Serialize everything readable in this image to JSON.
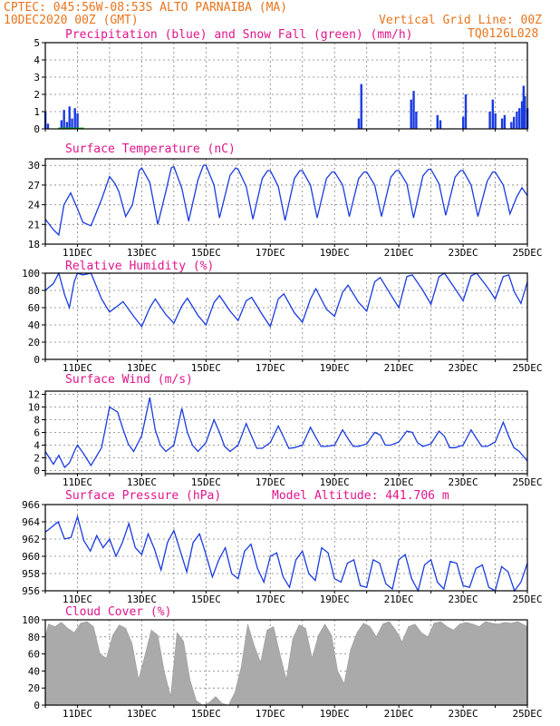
{
  "header": {
    "station": "CPTEC:  045:56W-08:53S  ALTO PARNAIBA (MA)",
    "init_time": "10DEC2020 00Z (GMT)",
    "grid_note": "Vertical Grid Line: 00Z",
    "run_code": "TQ0126L028"
  },
  "colors": {
    "accent": "#e8741c",
    "title": "#e0158c",
    "series": "#1a3be0",
    "snow": "#00b000",
    "cloud": "#aaaaaa"
  },
  "chart_data": [
    {
      "type": "bar",
      "title": "Precipitation (blue) and Snow Fall (green) (mm/h)",
      "ylim": [
        0,
        5
      ],
      "yticks": [
        "5",
        "4",
        "3",
        "2",
        "1",
        "0"
      ],
      "ytick_values": [
        5,
        4,
        3,
        2,
        1,
        0
      ],
      "x_ticks": [],
      "series": [
        {
          "color": "#1a3be0",
          "points": [
            [
              10.0,
              1.0
            ],
            [
              10.08,
              0.3
            ],
            [
              10.5,
              0.5
            ],
            [
              10.58,
              1.1
            ],
            [
              10.67,
              0.4
            ],
            [
              10.75,
              1.3
            ],
            [
              10.83,
              0.6
            ],
            [
              10.92,
              1.2
            ],
            [
              11.0,
              0.9
            ],
            [
              19.83,
              2.6
            ],
            [
              19.75,
              0.6
            ],
            [
              21.38,
              1.7
            ],
            [
              21.46,
              2.2
            ],
            [
              21.54,
              1.0
            ],
            [
              22.2,
              0.8
            ],
            [
              22.29,
              0.5
            ],
            [
              23.0,
              0.7
            ],
            [
              23.08,
              2.0
            ],
            [
              23.83,
              1.0
            ],
            [
              23.92,
              1.7
            ],
            [
              24.0,
              0.9
            ],
            [
              24.21,
              0.6
            ],
            [
              24.29,
              0.8
            ],
            [
              24.5,
              0.4
            ],
            [
              24.58,
              0.7
            ],
            [
              24.67,
              1.0
            ],
            [
              24.75,
              1.2
            ],
            [
              24.83,
              1.6
            ],
            [
              24.88,
              2.5
            ],
            [
              24.92,
              1.9
            ],
            [
              25.0,
              1.2
            ]
          ]
        },
        {
          "color": "#00b000",
          "points": []
        }
      ]
    },
    {
      "type": "line",
      "title": "Surface Temperature (nC)",
      "ylim": [
        18,
        31
      ],
      "yticks": [
        "30",
        "27",
        "24",
        "21",
        "18"
      ],
      "ytick_values": [
        30,
        27,
        24,
        21,
        18
      ],
      "x_ticks": [
        "11DEC",
        "13DEC",
        "15DEC",
        "17DEC",
        "19DEC",
        "21DEC",
        "23DEC",
        "25DEC"
      ],
      "x": [
        10.0,
        10.25,
        10.42,
        10.58,
        10.79,
        11.0,
        11.17,
        11.42,
        11.75,
        12.0,
        12.17,
        12.29,
        12.5,
        12.71,
        12.92,
        13.0,
        13.25,
        13.5,
        13.75,
        13.92,
        14.0,
        14.25,
        14.46,
        14.75,
        14.92,
        15.0,
        15.25,
        15.42,
        15.75,
        15.92,
        16.0,
        16.25,
        16.46,
        16.75,
        16.92,
        17.0,
        17.25,
        17.46,
        17.75,
        17.92,
        18.0,
        18.25,
        18.46,
        18.75,
        18.92,
        19.0,
        19.25,
        19.46,
        19.75,
        19.92,
        20.0,
        20.25,
        20.46,
        20.75,
        20.92,
        21.0,
        21.25,
        21.46,
        21.75,
        21.92,
        22.0,
        22.25,
        22.46,
        22.75,
        22.92,
        23.0,
        23.25,
        23.46,
        23.75,
        23.92,
        24.0,
        24.25,
        24.46,
        24.67,
        24.83,
        25.0
      ],
      "values": [
        21.8,
        20.2,
        19.4,
        24.0,
        25.8,
        23.4,
        21.3,
        20.8,
        24.8,
        28.3,
        27.2,
        26.0,
        22.2,
        24.0,
        29.2,
        29.6,
        27.4,
        21.0,
        26.0,
        29.6,
        29.8,
        26.5,
        21.5,
        27.8,
        30.0,
        30.0,
        27.0,
        22.0,
        28.5,
        29.6,
        29.4,
        26.8,
        21.8,
        28.0,
        29.2,
        29.2,
        26.8,
        21.6,
        28.0,
        29.2,
        29.2,
        27.0,
        22.0,
        28.0,
        29.0,
        29.0,
        27.0,
        22.2,
        28.0,
        29.0,
        29.0,
        27.0,
        22.2,
        28.2,
        29.2,
        29.2,
        27.2,
        22.0,
        28.4,
        29.4,
        29.4,
        27.2,
        22.4,
        28.2,
        29.2,
        29.2,
        27.0,
        22.2,
        27.6,
        29.0,
        29.0,
        27.0,
        22.6,
        25.2,
        26.6,
        25.4
      ]
    },
    {
      "type": "line",
      "title": "Relative Humidity (%)",
      "ylim": [
        0,
        100
      ],
      "yticks": [
        "100",
        "80",
        "60",
        "40",
        "20",
        "0"
      ],
      "ytick_values": [
        100,
        80,
        60,
        40,
        20,
        0
      ],
      "x_ticks": [
        "11DEC",
        "13DEC",
        "15DEC",
        "17DEC",
        "19DEC",
        "21DEC",
        "23DEC",
        "25DEC"
      ],
      "x": [
        10.0,
        10.25,
        10.42,
        10.6,
        10.75,
        10.9,
        11.0,
        11.17,
        11.42,
        11.75,
        12.0,
        12.25,
        12.42,
        12.75,
        13.0,
        13.25,
        13.42,
        13.75,
        14.0,
        14.25,
        14.42,
        14.75,
        15.0,
        15.25,
        15.42,
        15.75,
        16.0,
        16.25,
        16.42,
        16.75,
        17.0,
        17.25,
        17.42,
        17.75,
        18.0,
        18.25,
        18.42,
        18.75,
        19.0,
        19.25,
        19.42,
        19.75,
        20.0,
        20.25,
        20.42,
        20.75,
        21.0,
        21.25,
        21.42,
        21.75,
        22.0,
        22.25,
        22.42,
        22.75,
        23.0,
        23.25,
        23.42,
        23.75,
        24.0,
        24.25,
        24.42,
        24.6,
        24.8,
        25.0
      ],
      "values": [
        80,
        88,
        100,
        75,
        60,
        90,
        100,
        98,
        100,
        70,
        55,
        62,
        67,
        50,
        38,
        60,
        70,
        52,
        42,
        62,
        71,
        51,
        40,
        66,
        74,
        56,
        45,
        68,
        72,
        52,
        38,
        70,
        76,
        54,
        43,
        70,
        82,
        58,
        50,
        78,
        86,
        66,
        56,
        90,
        95,
        75,
        60,
        96,
        98,
        80,
        64,
        96,
        100,
        82,
        68,
        97,
        100,
        84,
        70,
        96,
        98,
        78,
        65,
        90
      ]
    },
    {
      "type": "line",
      "title": "Surface Wind (m/s)",
      "ylim": [
        -0.5,
        12.5
      ],
      "yticks": [
        "12",
        "10",
        "8",
        "6",
        "4",
        "2",
        "0"
      ],
      "ytick_values": [
        12,
        10,
        8,
        6,
        4,
        2,
        0
      ],
      "x_ticks": [
        "11DEC",
        "13DEC",
        "15DEC",
        "17DEC",
        "19DEC",
        "21DEC",
        "23DEC",
        "25DEC"
      ],
      "x": [
        10.0,
        10.25,
        10.42,
        10.6,
        10.75,
        10.92,
        11.0,
        11.17,
        11.42,
        11.75,
        12.0,
        12.25,
        12.42,
        12.58,
        12.75,
        13.0,
        13.25,
        13.42,
        13.58,
        13.75,
        14.0,
        14.25,
        14.42,
        14.58,
        14.75,
        15.0,
        15.25,
        15.42,
        15.58,
        15.75,
        16.0,
        16.25,
        16.42,
        16.58,
        16.75,
        17.0,
        17.25,
        17.42,
        17.58,
        17.75,
        18.0,
        18.25,
        18.42,
        18.58,
        18.75,
        19.0,
        19.25,
        19.42,
        19.58,
        19.75,
        20.0,
        20.25,
        20.42,
        20.58,
        20.75,
        21.0,
        21.25,
        21.42,
        21.58,
        21.75,
        22.0,
        22.25,
        22.42,
        22.58,
        22.75,
        23.0,
        23.25,
        23.42,
        23.58,
        23.75,
        24.0,
        24.25,
        24.42,
        24.58,
        24.75,
        25.0
      ],
      "values": [
        3.0,
        1.0,
        2.4,
        0.5,
        1.2,
        3.2,
        4.0,
        2.8,
        0.8,
        3.6,
        10.0,
        9.2,
        6.5,
        4.2,
        3.0,
        5.5,
        11.5,
        6.4,
        4.0,
        3.0,
        4.0,
        9.8,
        6.0,
        4.0,
        3.0,
        4.4,
        8.0,
        6.0,
        3.8,
        3.0,
        4.0,
        7.4,
        5.4,
        3.5,
        3.5,
        4.4,
        7.0,
        5.2,
        3.5,
        3.6,
        4.0,
        6.8,
        5.2,
        3.8,
        3.8,
        4.0,
        6.4,
        5.0,
        3.8,
        3.8,
        4.2,
        6.0,
        5.6,
        4.0,
        4.0,
        4.5,
        6.2,
        6.0,
        4.4,
        3.8,
        4.2,
        6.2,
        5.4,
        3.6,
        3.6,
        4.0,
        6.4,
        5.0,
        3.8,
        3.8,
        4.5,
        7.6,
        5.4,
        3.6,
        3.0,
        1.5
      ]
    },
    {
      "type": "line",
      "title": "Surface Pressure (hPa)",
      "subtitle": "Model Altitude: 441.706 m",
      "ylim": [
        956,
        966
      ],
      "yticks": [
        "966",
        "964",
        "962",
        "960",
        "958",
        "956"
      ],
      "ytick_values": [
        966,
        964,
        962,
        960,
        958,
        956
      ],
      "x_ticks": [
        "11DEC",
        "13DEC",
        "15DEC",
        "17DEC",
        "19DEC",
        "21DEC",
        "23DEC",
        "25DEC"
      ],
      "x": [
        10.0,
        10.2,
        10.4,
        10.6,
        10.8,
        11.0,
        11.2,
        11.4,
        11.6,
        11.8,
        12.0,
        12.2,
        12.4,
        12.6,
        12.8,
        13.0,
        13.2,
        13.4,
        13.6,
        13.8,
        14.0,
        14.2,
        14.4,
        14.6,
        14.8,
        15.0,
        15.2,
        15.4,
        15.6,
        15.8,
        16.0,
        16.2,
        16.4,
        16.6,
        16.8,
        17.0,
        17.2,
        17.4,
        17.6,
        17.8,
        18.0,
        18.2,
        18.4,
        18.6,
        18.8,
        19.0,
        19.2,
        19.4,
        19.6,
        19.8,
        20.0,
        20.2,
        20.4,
        20.6,
        20.8,
        21.0,
        21.2,
        21.4,
        21.6,
        21.8,
        22.0,
        22.2,
        22.4,
        22.6,
        22.8,
        23.0,
        23.2,
        23.4,
        23.6,
        23.8,
        24.0,
        24.2,
        24.4,
        24.6,
        24.8,
        25.0
      ],
      "values": [
        962.8,
        963.4,
        964.0,
        962.0,
        962.2,
        964.6,
        961.8,
        960.6,
        962.4,
        961.0,
        962.0,
        960.0,
        961.6,
        963.8,
        961.0,
        960.2,
        962.6,
        960.8,
        958.4,
        961.6,
        963.0,
        960.6,
        958.2,
        961.6,
        962.6,
        960.2,
        957.6,
        959.6,
        961.0,
        958.0,
        957.4,
        960.6,
        961.4,
        958.6,
        957.0,
        960.0,
        960.4,
        957.6,
        956.4,
        959.6,
        960.6,
        958.0,
        957.2,
        961.0,
        960.4,
        957.4,
        957.0,
        959.2,
        959.6,
        956.6,
        956.4,
        959.6,
        959.2,
        956.8,
        956.2,
        959.6,
        960.2,
        957.4,
        956.0,
        959.0,
        959.6,
        957.0,
        956.2,
        959.4,
        959.2,
        956.6,
        956.4,
        958.6,
        959.0,
        956.4,
        956.0,
        958.8,
        958.2,
        956.0,
        957.0,
        959.2
      ]
    },
    {
      "type": "area",
      "title": "Cloud Cover (%)",
      "ylim": [
        0,
        100
      ],
      "yticks": [
        "100",
        "80",
        "60",
        "40",
        "20",
        "0"
      ],
      "ytick_values": [
        100,
        80,
        60,
        40,
        20,
        0
      ],
      "x_ticks": [
        "11DEC",
        "13DEC",
        "15DEC",
        "17DEC",
        "19DEC",
        "21DEC",
        "23DEC",
        "25DEC"
      ],
      "x": [
        10.0,
        10.1,
        10.3,
        10.5,
        10.7,
        10.9,
        11.1,
        11.3,
        11.5,
        11.7,
        11.9,
        12.1,
        12.3,
        12.5,
        12.7,
        12.9,
        13.1,
        13.3,
        13.5,
        13.7,
        13.9,
        14.1,
        14.3,
        14.5,
        14.7,
        14.9,
        15.1,
        15.3,
        15.5,
        15.7,
        15.9,
        16.1,
        16.3,
        16.5,
        16.7,
        16.9,
        17.1,
        17.3,
        17.5,
        17.7,
        17.9,
        18.1,
        18.3,
        18.5,
        18.7,
        18.9,
        19.1,
        19.3,
        19.5,
        19.7,
        19.9,
        20.1,
        20.3,
        20.5,
        20.7,
        20.9,
        21.1,
        21.3,
        21.5,
        21.7,
        21.9,
        22.1,
        22.3,
        22.5,
        22.7,
        22.9,
        23.1,
        23.3,
        23.5,
        23.7,
        23.9,
        24.1,
        24.3,
        24.5,
        24.7,
        24.9,
        25.0
      ],
      "values": [
        80,
        95,
        92,
        97,
        90,
        85,
        96,
        98,
        92,
        60,
        55,
        82,
        94,
        90,
        72,
        30,
        58,
        88,
        82,
        40,
        10,
        85,
        75,
        30,
        5,
        0,
        3,
        10,
        2,
        0,
        15,
        45,
        95,
        70,
        50,
        88,
        92,
        60,
        30,
        78,
        94,
        90,
        55,
        82,
        95,
        82,
        40,
        25,
        65,
        85,
        96,
        92,
        80,
        95,
        98,
        88,
        74,
        92,
        95,
        85,
        80,
        96,
        98,
        92,
        88,
        95,
        97,
        95,
        92,
        98,
        96,
        95,
        97,
        96,
        98,
        94,
        92
      ]
    }
  ]
}
